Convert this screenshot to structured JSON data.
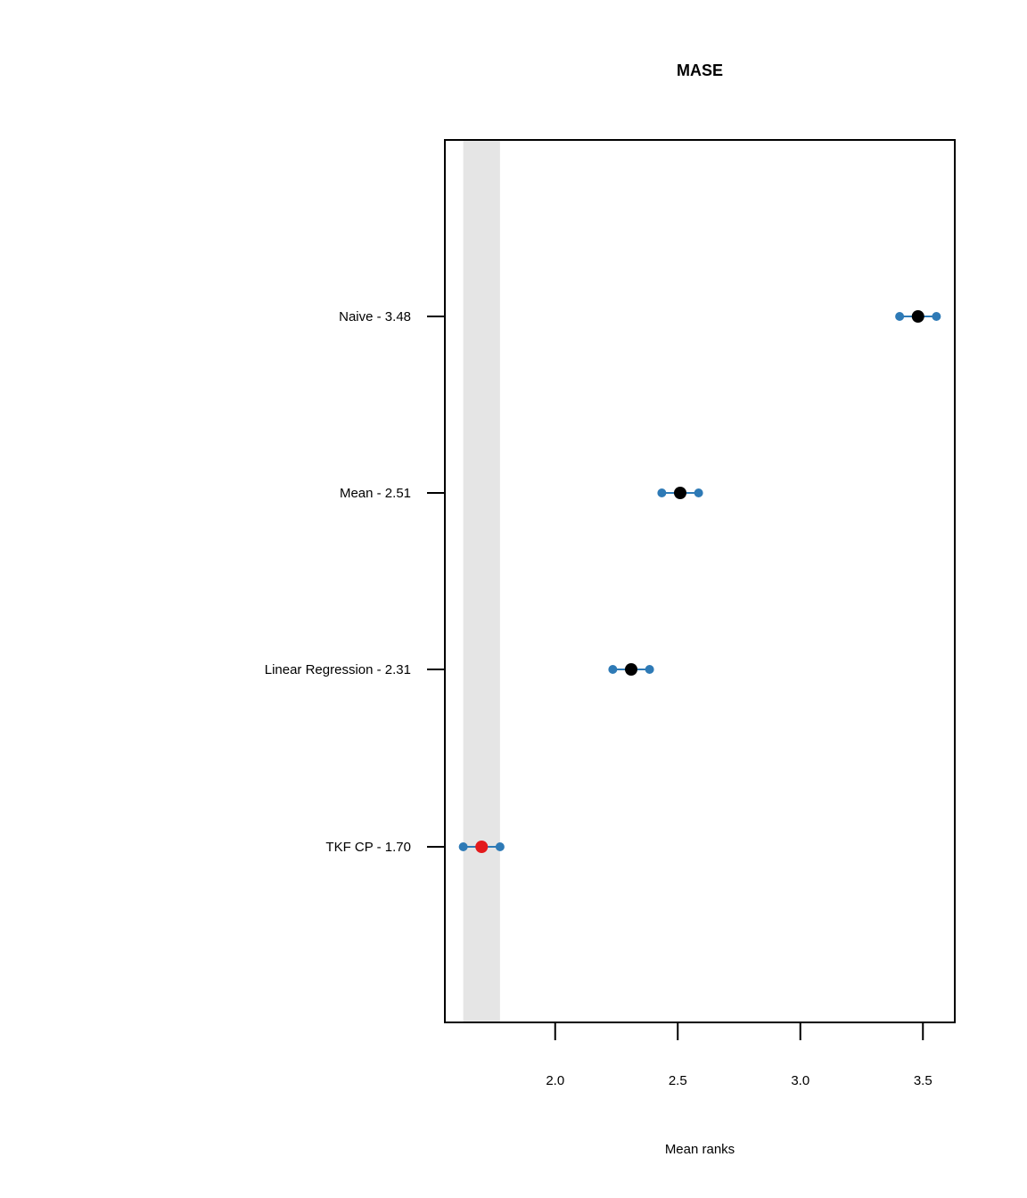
{
  "chart_data": {
    "type": "scatter",
    "title": "MASE",
    "xlabel": "Mean ranks",
    "ylabel": "",
    "xlim": [
      1.55,
      3.63
    ],
    "xticks": [
      "2.0",
      "2.5",
      "3.0",
      "3.5"
    ],
    "critical_band": [
      1.625,
      1.775
    ],
    "methods": [
      {
        "label": "Naive - 3.48",
        "mean": 3.48,
        "lower": 3.405,
        "upper": 3.555,
        "highlight": false
      },
      {
        "label": "Mean - 2.51",
        "mean": 2.51,
        "lower": 2.435,
        "upper": 2.585,
        "highlight": false
      },
      {
        "label": "Linear Regression - 2.31",
        "mean": 2.31,
        "lower": 2.235,
        "upper": 2.385,
        "highlight": false
      },
      {
        "label": "TKF CP - 1.70",
        "mean": 1.7,
        "lower": 1.625,
        "upper": 1.775,
        "highlight": true
      }
    ],
    "grid": false,
    "colors": {
      "interval": "#2e7ab6",
      "point": "#000000",
      "best_point": "#e31a1c",
      "band": "#e5e5e5"
    }
  }
}
